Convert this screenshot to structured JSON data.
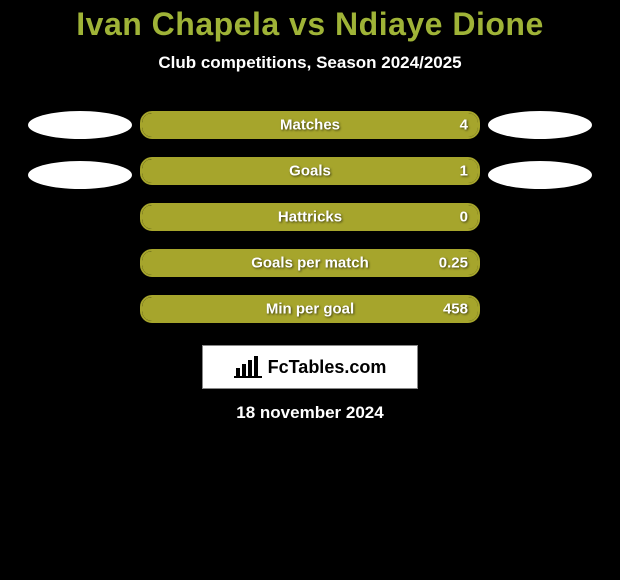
{
  "background_color": "#000000",
  "title": "Ivan Chapela vs Ndiaye Dione",
  "title_color": "#9fb337",
  "subtitle": "Club competitions, Season 2024/2025",
  "stats": [
    {
      "label": "Matches",
      "value": "4",
      "fill_pct": 100
    },
    {
      "label": "Goals",
      "value": "1",
      "fill_pct": 100
    },
    {
      "label": "Hattricks",
      "value": "0",
      "fill_pct": 100
    },
    {
      "label": "Goals per match",
      "value": "0.25",
      "fill_pct": 100
    },
    {
      "label": "Min per goal",
      "value": "458",
      "fill_pct": 100
    }
  ],
  "bar_fill_color": "#a6a52c",
  "bar_border_color": "#a6a52c",
  "bar_bg_color": "#000000",
  "oval_color": "#ffffff",
  "left_ovals": 2,
  "right_ovals": 2,
  "logo_text": "FcTables.com",
  "date": "18 november 2024"
}
